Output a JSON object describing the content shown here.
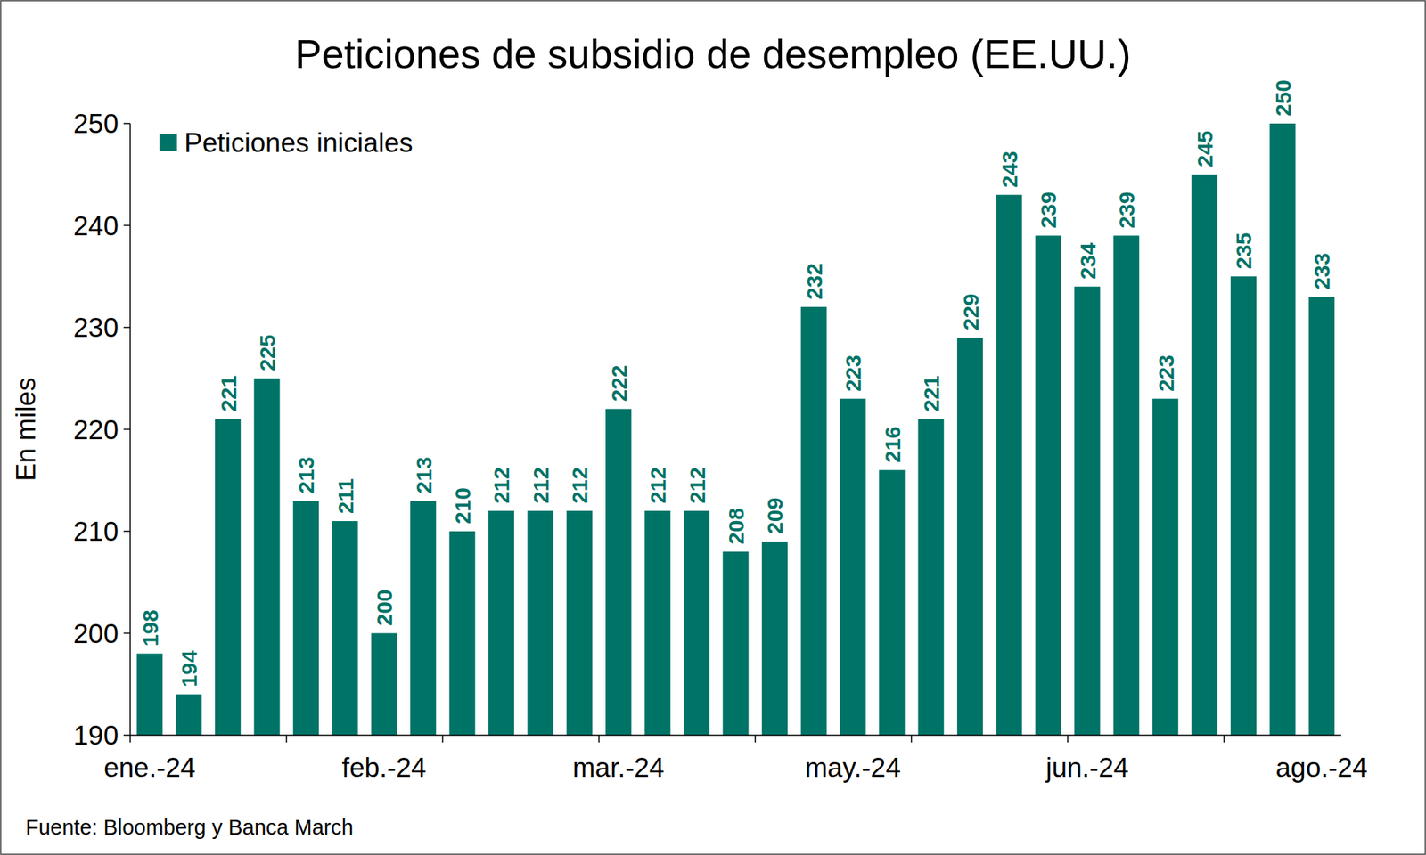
{
  "chart_data": {
    "type": "bar",
    "title": "Peticiones de subsidio de desempleo (EE.UU.)",
    "y_label": "En miles",
    "source": "Fuente: Bloomberg y Banca March",
    "categories": [
      "ene.-24",
      null,
      null,
      null,
      null,
      null,
      "feb.-24",
      null,
      null,
      null,
      null,
      null,
      "mar.-24",
      null,
      null,
      null,
      null,
      null,
      "may.-24",
      null,
      null,
      null,
      null,
      null,
      "jun.-24",
      null,
      null,
      null,
      null,
      null,
      "ago.-24"
    ],
    "series": [
      {
        "name": "Peticiones iniciales",
        "color": "#007367",
        "values": [
          198,
          194,
          221,
          225,
          213,
          211,
          200,
          213,
          210,
          212,
          212,
          212,
          222,
          212,
          212,
          208,
          209,
          232,
          223,
          216,
          221,
          229,
          243,
          239,
          234,
          239,
          223,
          245,
          235,
          250,
          233
        ]
      }
    ],
    "ylim": [
      190,
      250
    ],
    "yticks": [
      190,
      200,
      210,
      220,
      230,
      240,
      250
    ],
    "grid": false,
    "legend": "top-left",
    "data_labels": true
  }
}
